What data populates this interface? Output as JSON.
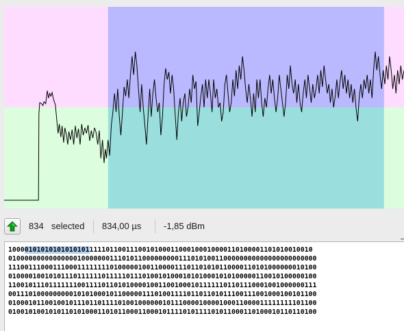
{
  "signal_view": {
    "colors": {
      "region_top": "#fedcff",
      "region_bottom": "#dcfede",
      "selection_top": "#bab8fe",
      "selection_bottom": "#9adfdd",
      "waveform": "#000000"
    },
    "selection_fraction": [
      0.26,
      0.95
    ],
    "waveform": [
      [
        0.0,
        1.0
      ],
      [
        0.086,
        1.0
      ],
      [
        0.087,
        0.07
      ],
      [
        0.089,
        -0.05
      ],
      [
        0.094,
        -0.04
      ],
      [
        0.097,
        -0.02
      ],
      [
        0.1,
        -0.06
      ],
      [
        0.104,
        -0.04
      ],
      [
        0.108,
        -0.18
      ],
      [
        0.111,
        -0.1
      ],
      [
        0.114,
        -0.15
      ],
      [
        0.117,
        -0.12
      ],
      [
        0.12,
        -0.16
      ],
      [
        0.124,
        -0.08
      ],
      [
        0.128,
        -0.03
      ],
      [
        0.132,
        0.15
      ],
      [
        0.135,
        0.28
      ],
      [
        0.138,
        0.18
      ],
      [
        0.142,
        0.32
      ],
      [
        0.145,
        0.2
      ],
      [
        0.149,
        0.38
      ],
      [
        0.152,
        0.22
      ],
      [
        0.156,
        0.3
      ],
      [
        0.159,
        0.4
      ],
      [
        0.162,
        0.26
      ],
      [
        0.166,
        0.35
      ],
      [
        0.17,
        0.24
      ],
      [
        0.174,
        0.4
      ],
      [
        0.178,
        0.2
      ],
      [
        0.182,
        0.33
      ],
      [
        0.186,
        0.23
      ],
      [
        0.19,
        0.4
      ],
      [
        0.194,
        0.18
      ],
      [
        0.198,
        0.3
      ],
      [
        0.202,
        0.22
      ],
      [
        0.206,
        0.28
      ],
      [
        0.21,
        0.19
      ],
      [
        0.214,
        0.36
      ],
      [
        0.218,
        0.25
      ],
      [
        0.222,
        0.33
      ],
      [
        0.226,
        0.22
      ],
      [
        0.23,
        0.27
      ],
      [
        0.234,
        0.4
      ],
      [
        0.238,
        0.25
      ],
      [
        0.242,
        0.55
      ],
      [
        0.246,
        0.35
      ],
      [
        0.25,
        0.6
      ],
      [
        0.253,
        0.45
      ],
      [
        0.256,
        0.55
      ],
      [
        0.26,
        0.35
      ],
      [
        0.264,
        0.52
      ],
      [
        0.268,
        0.2
      ],
      [
        0.272,
        0.05
      ],
      [
        0.276,
        -0.15
      ],
      [
        0.28,
        0.05
      ],
      [
        0.284,
        -0.2
      ],
      [
        0.288,
        0.1
      ],
      [
        0.292,
        0.3
      ],
      [
        0.296,
        0.05
      ],
      [
        0.3,
        -0.22
      ],
      [
        0.304,
        -0.12
      ],
      [
        0.308,
        -0.3
      ],
      [
        0.312,
        -0.1
      ],
      [
        0.316,
        -0.35
      ],
      [
        0.32,
        -0.55
      ],
      [
        0.324,
        -0.35
      ],
      [
        0.328,
        -0.6
      ],
      [
        0.332,
        -0.45
      ],
      [
        0.336,
        -0.2
      ],
      [
        0.34,
        0.05
      ],
      [
        0.344,
        -0.25
      ],
      [
        0.348,
        0.0
      ],
      [
        0.352,
        0.2
      ],
      [
        0.356,
        0.4
      ],
      [
        0.36,
        0.1
      ],
      [
        0.364,
        -0.2
      ],
      [
        0.368,
        0.1
      ],
      [
        0.372,
        -0.15
      ],
      [
        0.376,
        -0.3
      ],
      [
        0.38,
        -0.1
      ],
      [
        0.384,
        0.05
      ],
      [
        0.388,
        -0.05
      ],
      [
        0.392,
        0.3
      ],
      [
        0.396,
        0.1
      ],
      [
        0.4,
        -0.25
      ],
      [
        0.404,
        -0.42
      ],
      [
        0.408,
        -0.3
      ],
      [
        0.412,
        -0.38
      ],
      [
        0.416,
        -0.15
      ],
      [
        0.42,
        -0.35
      ],
      [
        0.424,
        -0.2
      ],
      [
        0.428,
        0.1
      ],
      [
        0.432,
        0.35
      ],
      [
        0.436,
        0.05
      ],
      [
        0.44,
        -0.1
      ],
      [
        0.444,
        0.15
      ],
      [
        0.448,
        -0.05
      ],
      [
        0.452,
        -0.15
      ],
      [
        0.456,
        0.1
      ],
      [
        0.46,
        0.0
      ],
      [
        0.464,
        -0.2
      ],
      [
        0.468,
        -0.05
      ],
      [
        0.472,
        -0.35
      ],
      [
        0.476,
        -0.2
      ],
      [
        0.48,
        -0.28
      ],
      [
        0.484,
        0.2
      ],
      [
        0.488,
        0.05
      ],
      [
        0.492,
        -0.12
      ],
      [
        0.496,
        -0.25
      ],
      [
        0.5,
        0.0
      ],
      [
        0.504,
        -0.3
      ],
      [
        0.508,
        -0.1
      ],
      [
        0.512,
        -0.3
      ],
      [
        0.516,
        -0.15
      ],
      [
        0.52,
        0.05
      ],
      [
        0.524,
        -0.3
      ],
      [
        0.528,
        -0.1
      ],
      [
        0.532,
        -0.2
      ],
      [
        0.536,
        0.0
      ],
      [
        0.54,
        -0.05
      ],
      [
        0.544,
        0.15
      ],
      [
        0.548,
        0.05
      ],
      [
        0.552,
        -0.25
      ],
      [
        0.556,
        -0.35
      ],
      [
        0.56,
        -0.15
      ],
      [
        0.564,
        0.05
      ],
      [
        0.568,
        -0.05
      ],
      [
        0.572,
        -0.3
      ],
      [
        0.576,
        -0.12
      ],
      [
        0.58,
        -0.4
      ],
      [
        0.584,
        -0.2
      ],
      [
        0.588,
        -0.45
      ],
      [
        0.592,
        -0.3
      ],
      [
        0.596,
        -0.55
      ],
      [
        0.6,
        -0.4
      ],
      [
        0.604,
        -0.2
      ],
      [
        0.608,
        -0.05
      ],
      [
        0.612,
        -0.25
      ],
      [
        0.616,
        -0.1
      ],
      [
        0.62,
        0.1
      ],
      [
        0.624,
        -0.15
      ],
      [
        0.628,
        0.05
      ],
      [
        0.632,
        -0.3
      ],
      [
        0.636,
        -0.1
      ],
      [
        0.64,
        -0.3
      ],
      [
        0.644,
        -0.05
      ],
      [
        0.648,
        0.1
      ],
      [
        0.652,
        -0.1
      ],
      [
        0.656,
        0.0
      ],
      [
        0.66,
        -0.2
      ],
      [
        0.664,
        -0.35
      ],
      [
        0.668,
        -0.15
      ],
      [
        0.672,
        -0.3
      ],
      [
        0.676,
        -0.1
      ],
      [
        0.68,
        0.05
      ],
      [
        0.684,
        -0.1
      ],
      [
        0.688,
        -0.35
      ],
      [
        0.692,
        -0.2
      ],
      [
        0.696,
        -0.05
      ],
      [
        0.7,
        0.1
      ],
      [
        0.704,
        -0.05
      ],
      [
        0.708,
        -0.35
      ],
      [
        0.712,
        -0.2
      ],
      [
        0.716,
        -0.45
      ],
      [
        0.72,
        -0.25
      ],
      [
        0.724,
        -0.15
      ],
      [
        0.728,
        -0.3
      ],
      [
        0.732,
        -0.05
      ],
      [
        0.736,
        -0.25
      ],
      [
        0.74,
        -0.05
      ],
      [
        0.744,
        0.05
      ],
      [
        0.748,
        -0.15
      ],
      [
        0.752,
        -0.3
      ],
      [
        0.756,
        -0.1
      ],
      [
        0.76,
        -0.35
      ],
      [
        0.764,
        -0.2
      ],
      [
        0.768,
        -0.05
      ],
      [
        0.772,
        -0.25
      ],
      [
        0.776,
        -0.1
      ],
      [
        0.78,
        -0.2
      ],
      [
        0.784,
        -0.35
      ],
      [
        0.788,
        -0.15
      ],
      [
        0.792,
        -0.4
      ],
      [
        0.796,
        -0.22
      ],
      [
        0.8,
        -0.45
      ],
      [
        0.804,
        -0.3
      ],
      [
        0.808,
        -0.15
      ],
      [
        0.812,
        -0.25
      ],
      [
        0.816,
        -0.05
      ],
      [
        0.82,
        -0.2
      ],
      [
        0.824,
        0.0
      ],
      [
        0.828,
        -0.12
      ],
      [
        0.832,
        -0.3
      ],
      [
        0.836,
        -0.1
      ],
      [
        0.84,
        -0.28
      ],
      [
        0.844,
        -0.4
      ],
      [
        0.848,
        -0.2
      ],
      [
        0.852,
        -0.35
      ],
      [
        0.856,
        -0.15
      ],
      [
        0.86,
        -0.3
      ],
      [
        0.864,
        -0.1
      ],
      [
        0.868,
        -0.25
      ],
      [
        0.872,
        -0.05
      ],
      [
        0.876,
        -0.2
      ],
      [
        0.88,
        0.0
      ],
      [
        0.884,
        0.15
      ],
      [
        0.888,
        -0.1
      ],
      [
        0.892,
        -0.25
      ],
      [
        0.896,
        -0.1
      ],
      [
        0.9,
        -0.3
      ],
      [
        0.904,
        -0.2
      ],
      [
        0.908,
        -0.35
      ],
      [
        0.912,
        -0.15
      ],
      [
        0.916,
        -0.3
      ],
      [
        0.92,
        -0.1
      ],
      [
        0.924,
        -0.4
      ],
      [
        0.928,
        -0.6
      ],
      [
        0.932,
        -0.4
      ],
      [
        0.936,
        -0.55
      ],
      [
        0.94,
        -0.35
      ],
      [
        0.944,
        -0.2
      ],
      [
        0.948,
        -0.4
      ],
      [
        0.952,
        -0.25
      ],
      [
        0.956,
        -0.45
      ],
      [
        0.96,
        -0.3
      ],
      [
        0.964,
        -0.55
      ],
      [
        0.968,
        -0.4
      ],
      [
        0.972,
        -0.2
      ],
      [
        0.976,
        -0.35
      ],
      [
        0.98,
        -0.15
      ],
      [
        0.984,
        -0.4
      ],
      [
        0.988,
        -0.25
      ],
      [
        0.992,
        -0.45
      ],
      [
        0.996,
        -0.3
      ],
      [
        1.0,
        -0.4
      ]
    ]
  },
  "status": {
    "selected_count": "834",
    "selected_label": "selected",
    "duration": "834,00 µs",
    "power": "-1,85 dBm"
  },
  "bits": {
    "lines": [
      {
        "pre": "1000",
        "sel": "0101010101010101",
        "post": "1111011001110010100011000100010000110100001101010010010"
      },
      {
        "pre": "",
        "sel": "",
        "post": "0100000000000000010000000111010110000000001110101001100000000000000000000000"
      },
      {
        "pre": "",
        "sel": "",
        "post": "1110011100011100011111111010000010011000011101101010110000110101000000010100"
      },
      {
        "pre": "",
        "sel": "",
        "post": "0100001001010111011111101111101110100101000101010001010100000110010100000100"
      },
      {
        "pre": "",
        "sel": "",
        "post": "1100101110111111100111101101010000100110010001011111101101110001001000000111"
      },
      {
        "pre": "",
        "sel": "",
        "post": "0011101000000000101010001011000001110100111101101101011100111001000100101100"
      },
      {
        "pre": "",
        "sel": "",
        "post": "0100010110010010111011011110100100000010111000010000100011000011111111101100"
      },
      {
        "pre": "",
        "sel": "",
        "post": "0100101001010110101000110101100011000101111010111101011000110100010110110100"
      }
    ]
  }
}
